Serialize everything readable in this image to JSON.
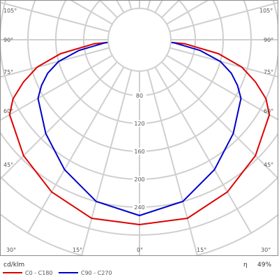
{
  "chart_data": {
    "type": "polar",
    "unit": "cd/klm",
    "efficiency_symbol": "η",
    "efficiency": "49%",
    "angle_labels": [
      "105°",
      "90°",
      "75°",
      "60°",
      "45°",
      "30°",
      "15°",
      "0°",
      "15°",
      "30°",
      "45°",
      "60°",
      "75°",
      "90°",
      "105°"
    ],
    "ring_step": 40,
    "ring_count": 8,
    "radial_tick_labels": [
      "80",
      "120",
      "160",
      "200",
      "240"
    ],
    "series": [
      {
        "name": "C0 - C180",
        "color": "#dd0000",
        "angles_deg": [
          0,
          15,
          30,
          45,
          60,
          65,
          70,
          75,
          80,
          85,
          90
        ],
        "intensity": [
          265,
          265,
          252,
          235,
          215,
          200,
          177,
          152,
          115,
          65,
          5
        ]
      },
      {
        "name": "C90 - C270",
        "color": "#0000cc",
        "angles_deg": [
          0,
          15,
          30,
          45,
          60,
          65,
          70,
          75,
          80,
          85,
          90
        ],
        "intensity": [
          252,
          240,
          215,
          190,
          168,
          155,
          140,
          120,
          88,
          50,
          5
        ]
      }
    ]
  }
}
